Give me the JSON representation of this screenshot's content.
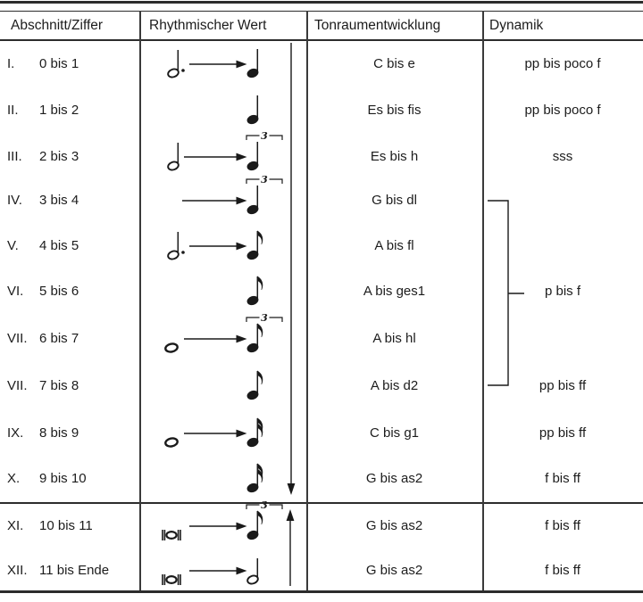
{
  "page": {
    "background": "#ffffff",
    "ink": "#1a1a1a"
  },
  "table": {
    "headers": [
      "Abschnitt/Ziffer",
      "Rhythmischer Wert",
      "Tonraumentwicklung",
      "Dynamik"
    ],
    "rows": [
      {
        "numeral": "I.",
        "ziffer": "0 bis 1",
        "rhythm": {
          "start": "dotted-half",
          "arrow": true,
          "end": "quarter",
          "triplet": false
        },
        "tonraum": "C bis e",
        "dynamik": "pp bis poco f"
      },
      {
        "numeral": "II.",
        "ziffer": "1 bis 2",
        "rhythm": {
          "start": null,
          "arrow": false,
          "end": "quarter",
          "triplet": false
        },
        "tonraum": "Es bis fis",
        "dynamik": "pp bis poco f"
      },
      {
        "numeral": "III.",
        "ziffer": "2 bis 3",
        "rhythm": {
          "start": "half",
          "arrow": true,
          "end": "quarter",
          "triplet": true
        },
        "tonraum": "Es bis h",
        "dynamik": "sss"
      },
      {
        "numeral": "IV.",
        "ziffer": "3 bis 4",
        "rhythm": {
          "start": null,
          "arrow": true,
          "end": "quarter",
          "triplet": true
        },
        "tonraum": "G bis dl",
        "dynamik": ""
      },
      {
        "numeral": "V.",
        "ziffer": "4 bis 5",
        "rhythm": {
          "start": "dotted-half",
          "arrow": true,
          "end": "eighth",
          "triplet": false
        },
        "tonraum": "A bis fl",
        "dynamik": ""
      },
      {
        "numeral": "VI.",
        "ziffer": "5 bis 6",
        "rhythm": {
          "start": null,
          "arrow": false,
          "end": "eighth",
          "triplet": false
        },
        "tonraum": "A bis ges1",
        "dynamik": "p bis f"
      },
      {
        "numeral": "VII.",
        "ziffer": "6 bis 7",
        "rhythm": {
          "start": "whole",
          "arrow": true,
          "end": "eighth",
          "triplet": true
        },
        "tonraum": "A bis hl",
        "dynamik": ""
      },
      {
        "numeral": "VII.",
        "ziffer": "7 bis 8",
        "rhythm": {
          "start": null,
          "arrow": false,
          "end": "eighth",
          "triplet": false
        },
        "tonraum": "A bis d2",
        "dynamik": "pp bis ff"
      },
      {
        "numeral": "IX.",
        "ziffer": "8 bis 9",
        "rhythm": {
          "start": "whole",
          "arrow": true,
          "end": "sixteenth",
          "triplet": false
        },
        "tonraum": "C bis g1",
        "dynamik": "pp bis ff"
      },
      {
        "numeral": "X.",
        "ziffer": "9 bis 10",
        "rhythm": {
          "start": null,
          "arrow": false,
          "end": "sixteenth",
          "triplet": false
        },
        "tonraum": "G bis as2",
        "dynamik": "f bis ff"
      },
      {
        "numeral": "XI.",
        "ziffer": "10 bis 11",
        "rhythm": {
          "start": "breve",
          "arrow": true,
          "end": "eighth",
          "triplet": true
        },
        "tonraum": "G bis as2",
        "dynamik": "f bis ff"
      },
      {
        "numeral": "XII.",
        "ziffer": "11 bis Ende",
        "rhythm": {
          "start": "breve",
          "arrow": true,
          "end": "half",
          "triplet": false
        },
        "tonraum": "G bis as2",
        "dynamik": "f bis ff"
      }
    ],
    "notation": {
      "triplet_label": "3",
      "descending_arrow_rows": "I bis X",
      "ascending_arrow_rows": "XI bis XII",
      "dynamics_bracket_rows": "IV bis VII (7 bis 8)",
      "dynamics_bracket_label": "p bis f"
    }
  }
}
